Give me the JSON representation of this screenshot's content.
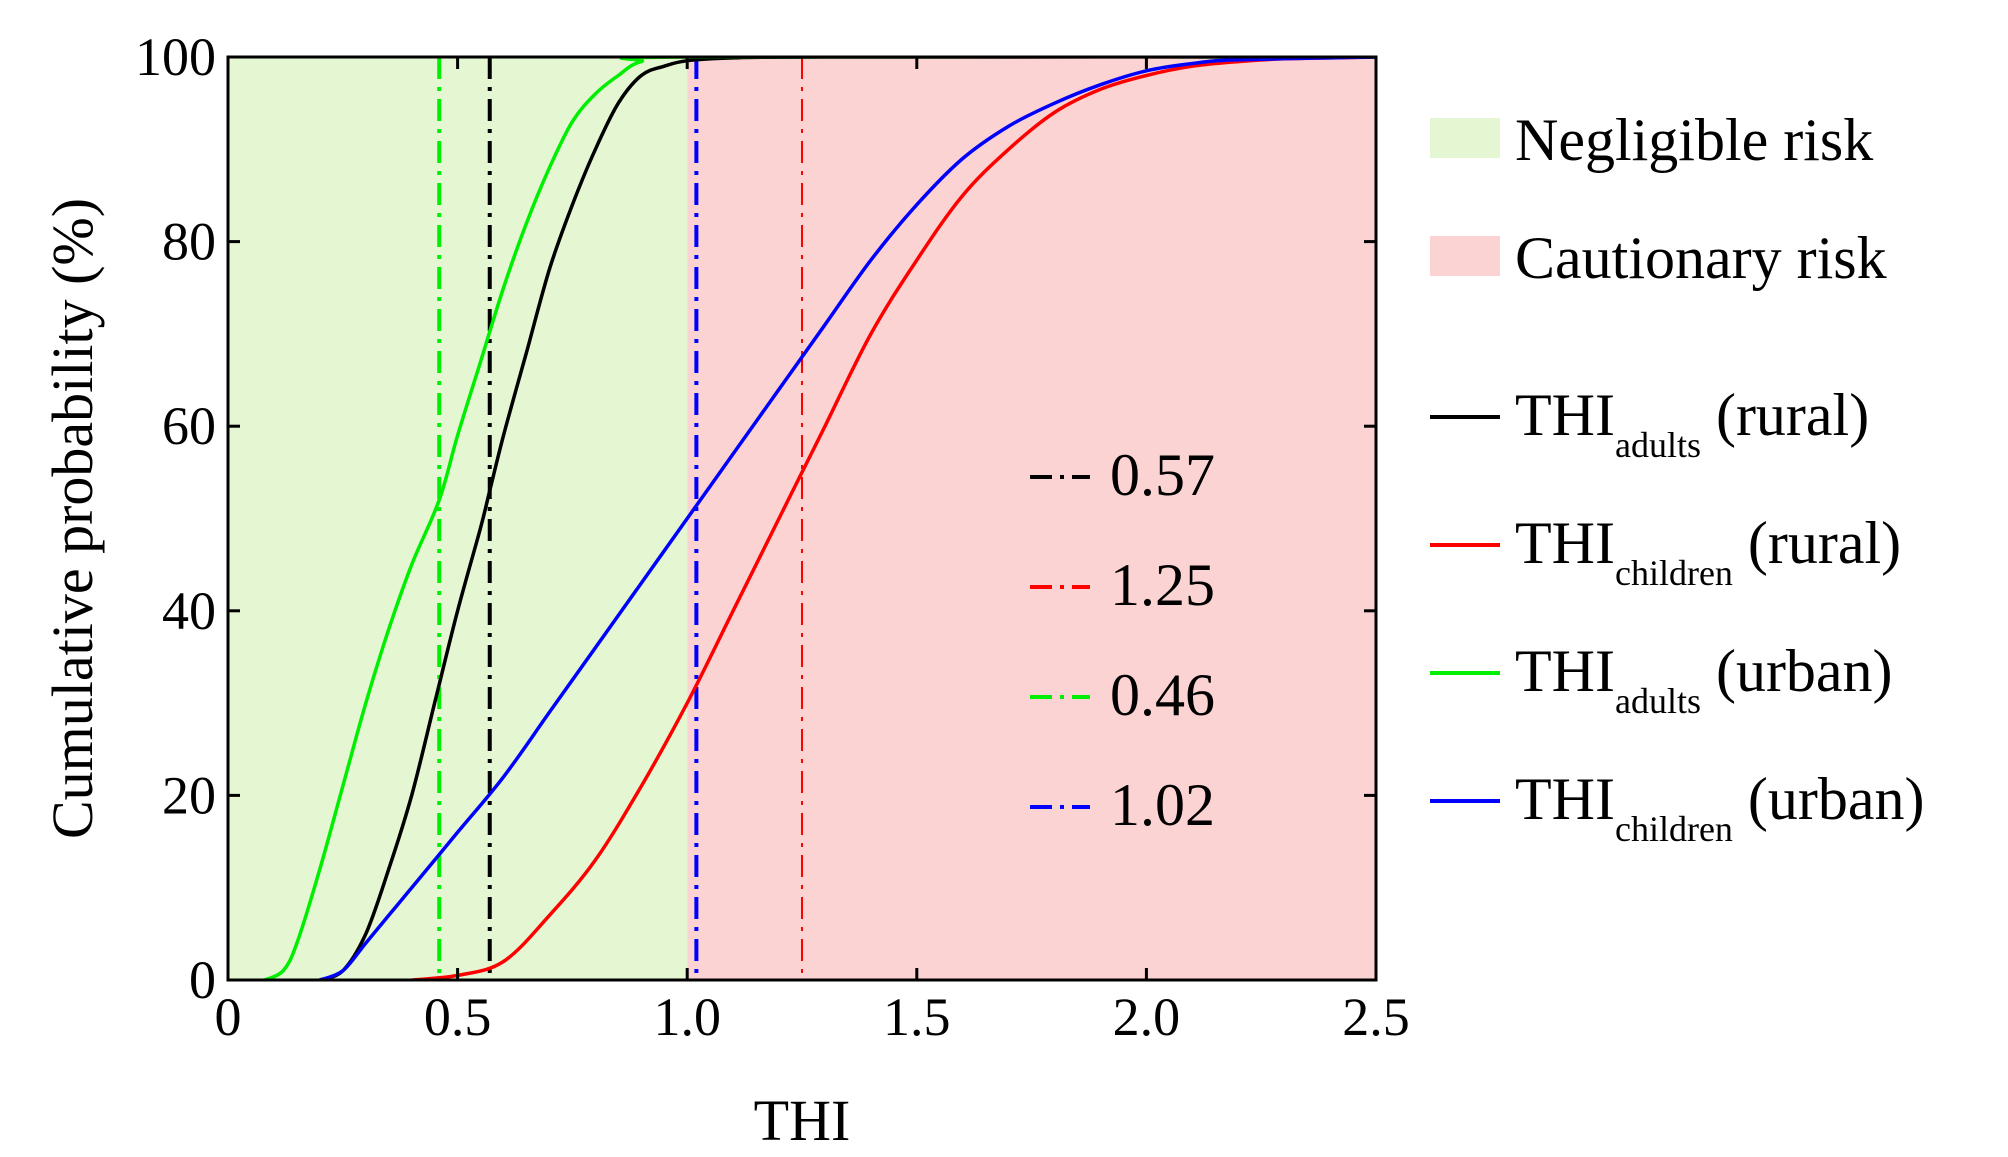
{
  "chart_data": {
    "type": "line",
    "xlabel": "THI",
    "ylabel": "Cumulative probability (%)",
    "xlim": [
      0,
      2.5
    ],
    "ylim": [
      0,
      100
    ],
    "xticks": [
      {
        "value": 0,
        "label": "0"
      },
      {
        "value": 0.5,
        "label": "0.5"
      },
      {
        "value": 1.0,
        "label": "1.0"
      },
      {
        "value": 1.5,
        "label": "1.5"
      },
      {
        "value": 2.0,
        "label": "2.0"
      },
      {
        "value": 2.5,
        "label": "2.5"
      }
    ],
    "yticks": [
      {
        "value": 0,
        "label": "0"
      },
      {
        "value": 20,
        "label": "20"
      },
      {
        "value": 40,
        "label": "40"
      },
      {
        "value": 60,
        "label": "60"
      },
      {
        "value": 80,
        "label": "80"
      },
      {
        "value": 100,
        "label": "100"
      }
    ],
    "regions": [
      {
        "name": "Negligible risk",
        "from": 0,
        "to": 1.0,
        "color": "#e4f7d2"
      },
      {
        "name": "Cautionary risk",
        "from": 1.0,
        "to": 2.5,
        "color": "#fcd3d3"
      }
    ],
    "series": [
      {
        "key": "adults-rural",
        "name": "THI",
        "subscript": "adults",
        "suffix": " (rural)",
        "color": "#000000",
        "points": [
          [
            0.2,
            0
          ],
          [
            0.25,
            1
          ],
          [
            0.3,
            5
          ],
          [
            0.35,
            12
          ],
          [
            0.4,
            20
          ],
          [
            0.45,
            30
          ],
          [
            0.5,
            40
          ],
          [
            0.55,
            49
          ],
          [
            0.57,
            53
          ],
          [
            0.6,
            59
          ],
          [
            0.65,
            68
          ],
          [
            0.7,
            77
          ],
          [
            0.75,
            84
          ],
          [
            0.8,
            90
          ],
          [
            0.85,
            95
          ],
          [
            0.9,
            98
          ],
          [
            0.95,
            99
          ],
          [
            1.0,
            99.6
          ],
          [
            1.1,
            99.9
          ],
          [
            1.3,
            100
          ],
          [
            2.5,
            100
          ]
        ]
      },
      {
        "key": "children-rural",
        "name": "THI",
        "subscript": "children",
        "suffix": " (rural)",
        "color": "#ff0000",
        "points": [
          [
            0.4,
            0
          ],
          [
            0.5,
            0.5
          ],
          [
            0.6,
            2
          ],
          [
            0.7,
            7
          ],
          [
            0.8,
            13
          ],
          [
            0.9,
            21
          ],
          [
            1.0,
            30
          ],
          [
            1.1,
            40
          ],
          [
            1.2,
            50
          ],
          [
            1.25,
            55
          ],
          [
            1.3,
            60
          ],
          [
            1.4,
            70
          ],
          [
            1.5,
            78
          ],
          [
            1.6,
            85
          ],
          [
            1.7,
            90
          ],
          [
            1.8,
            94
          ],
          [
            1.9,
            96.5
          ],
          [
            2.0,
            98
          ],
          [
            2.1,
            99
          ],
          [
            2.2,
            99.5
          ],
          [
            2.3,
            99.8
          ],
          [
            2.5,
            100
          ]
        ]
      },
      {
        "key": "adults-urban",
        "name": "THI",
        "subscript": "adults",
        "suffix": " (urban)",
        "color": "#00ee00",
        "points": [
          [
            0.08,
            0
          ],
          [
            0.12,
            1
          ],
          [
            0.15,
            4
          ],
          [
            0.2,
            12
          ],
          [
            0.25,
            21
          ],
          [
            0.3,
            30
          ],
          [
            0.35,
            38
          ],
          [
            0.4,
            45
          ],
          [
            0.46,
            52
          ],
          [
            0.5,
            59
          ],
          [
            0.55,
            67
          ],
          [
            0.6,
            75
          ],
          [
            0.65,
            82
          ],
          [
            0.7,
            88
          ],
          [
            0.75,
            93
          ],
          [
            0.8,
            96
          ],
          [
            0.85,
            98
          ],
          [
            0.9,
            99.5
          ],
          [
            1.0,
            100
          ],
          [
            2.5,
            100
          ]
        ]
      },
      {
        "key": "children-urban",
        "name": "THI",
        "subscript": "children",
        "suffix": " (urban)",
        "color": "#0000ff",
        "points": [
          [
            0.2,
            0
          ],
          [
            0.25,
            1
          ],
          [
            0.3,
            4
          ],
          [
            0.35,
            7
          ],
          [
            0.4,
            10
          ],
          [
            0.5,
            16
          ],
          [
            0.6,
            22
          ],
          [
            0.7,
            29
          ],
          [
            0.8,
            36
          ],
          [
            0.9,
            43
          ],
          [
            1.0,
            50
          ],
          [
            1.1,
            57
          ],
          [
            1.2,
            64
          ],
          [
            1.3,
            71
          ],
          [
            1.4,
            78
          ],
          [
            1.5,
            84
          ],
          [
            1.6,
            89
          ],
          [
            1.7,
            92.5
          ],
          [
            1.8,
            95
          ],
          [
            1.9,
            97
          ],
          [
            2.0,
            98.5
          ],
          [
            2.1,
            99.3
          ],
          [
            2.2,
            99.7
          ],
          [
            2.5,
            100
          ]
        ]
      }
    ],
    "reference_lines": [
      {
        "label": "0.57",
        "x": 0.57,
        "color": "#000000"
      },
      {
        "label": "1.25",
        "x": 1.25,
        "color": "#ff0000"
      },
      {
        "label": "0.46",
        "x": 0.46,
        "color": "#00ee00"
      },
      {
        "label": "1.02",
        "x": 1.02,
        "color": "#0000ff"
      }
    ],
    "legend": {
      "placement": "right",
      "regions_labels": [
        "Negligible risk",
        "Cautionary risk"
      ]
    },
    "grid": false
  }
}
